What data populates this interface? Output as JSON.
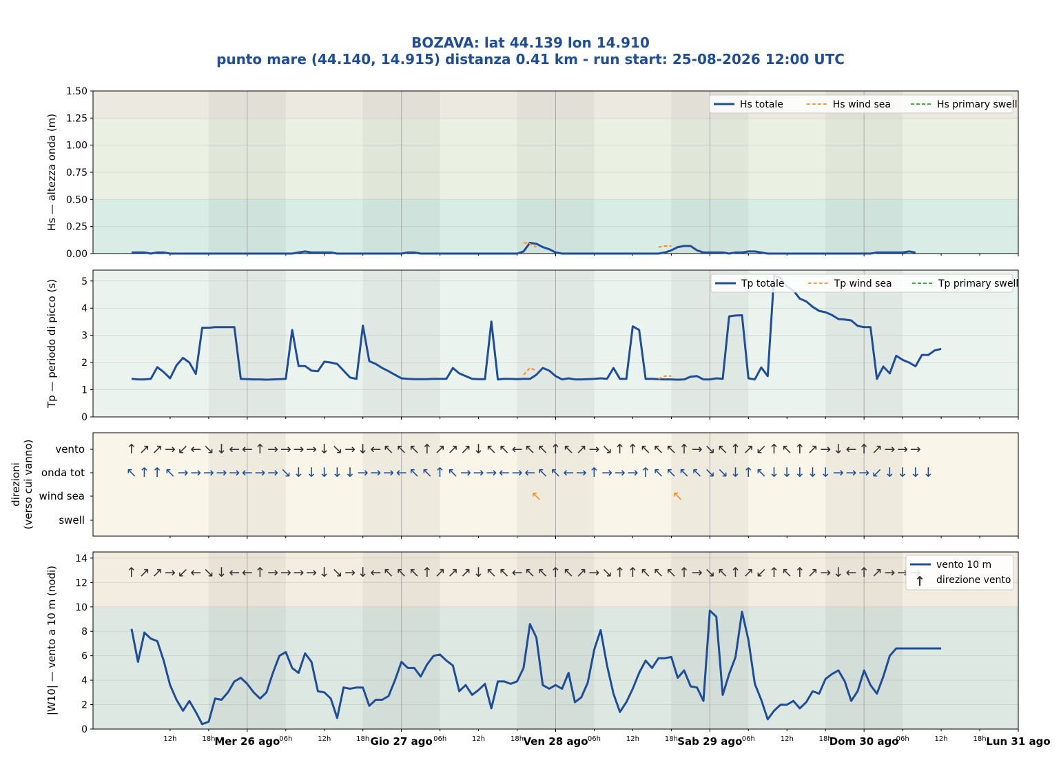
{
  "header": {
    "title_line1": "BOZAVA: lat 44.139 lon 14.910",
    "title_line2": "punto mare (44.140, 14.915)  distanza 0.41 km  -  run start: 25-08-2026 12:00 UTC"
  },
  "colors": {
    "totale": "#1f4e96",
    "wind_sea": "#ff8c1a",
    "swell": "#2ca02c",
    "arrow_vento": "#333333",
    "arrow_onda": "#1f4e96"
  },
  "x_axis": {
    "start_hour": 0,
    "end_hour": 144,
    "minor_ticks": [
      {
        "hour": 12,
        "label": "12h"
      },
      {
        "hour": 18,
        "label": "18h"
      },
      {
        "hour": 30,
        "label": "06h"
      },
      {
        "hour": 36,
        "label": "12h"
      },
      {
        "hour": 42,
        "label": "18h"
      },
      {
        "hour": 54,
        "label": "06h"
      },
      {
        "hour": 60,
        "label": "12h"
      },
      {
        "hour": 66,
        "label": "18h"
      },
      {
        "hour": 78,
        "label": "06h"
      },
      {
        "hour": 84,
        "label": "12h"
      },
      {
        "hour": 90,
        "label": "18h"
      },
      {
        "hour": 102,
        "label": "06h"
      },
      {
        "hour": 108,
        "label": "12h"
      },
      {
        "hour": 114,
        "label": "18h"
      },
      {
        "hour": 126,
        "label": "06h"
      },
      {
        "hour": 132,
        "label": "12h"
      },
      {
        "hour": 138,
        "label": "18h"
      }
    ],
    "day_labels": [
      {
        "hour": 24,
        "label": "Mer 26 ago"
      },
      {
        "hour": 48,
        "label": "Gio 27 ago"
      },
      {
        "hour": 72,
        "label": "Ven 28 ago"
      },
      {
        "hour": 96,
        "label": "Sab 29 ago"
      },
      {
        "hour": 120,
        "label": "Dom 30 ago"
      },
      {
        "hour": 144,
        "label": "Lun 31 ago"
      }
    ],
    "night_bands": [
      [
        18,
        30
      ],
      [
        42,
        54
      ],
      [
        66,
        78
      ],
      [
        90,
        102
      ],
      [
        114,
        126
      ]
    ]
  },
  "chart_data": [
    {
      "type": "line",
      "id": "hs",
      "ylabel": "Hs — altezza onda (m)",
      "ylim": [
        0,
        1.5
      ],
      "yticks": [
        0,
        0.25,
        0.5,
        0.75,
        1.0,
        1.25,
        1.5
      ],
      "ytick_labels": [
        "0.00",
        "0.25",
        "0.50",
        "0.75",
        "1.00",
        "1.25",
        "1.50"
      ],
      "legend": [
        "Hs totale",
        "Hs wind sea",
        "Hs primary swell"
      ],
      "legend_position": "top-right",
      "x_start": 6,
      "x_step": 1,
      "series": [
        {
          "name": "Hs totale",
          "style": "solid",
          "values": [
            0.01,
            0.01,
            0.01,
            0.0,
            0.01,
            0.01,
            0.0,
            0.0,
            0.0,
            0.0,
            0.0,
            0.0,
            0.0,
            0.0,
            0.0,
            0.0,
            0.0,
            0.0,
            0.0,
            0.0,
            0.0,
            0.0,
            0.0,
            0.0,
            0.0,
            0.0,
            0.01,
            0.02,
            0.01,
            0.01,
            0.01,
            0.01,
            0.0,
            0.0,
            0.0,
            0.0,
            0.0,
            0.0,
            0.0,
            0.0,
            0.0,
            0.0,
            0.0,
            0.01,
            0.01,
            0.0,
            0.0,
            0.0,
            0.0,
            0.0,
            0.0,
            0.0,
            0.0,
            0.0,
            0.0,
            0.0,
            0.0,
            0.0,
            0.0,
            0.0,
            0.0,
            0.02,
            0.1,
            0.09,
            0.06,
            0.04,
            0.01,
            0.0,
            0.0,
            0.0,
            0.0,
            0.0,
            0.0,
            0.0,
            0.0,
            0.0,
            0.0,
            0.0,
            0.0,
            0.0,
            0.0,
            0.0,
            0.0,
            0.01,
            0.03,
            0.06,
            0.07,
            0.07,
            0.03,
            0.01,
            0.01,
            0.01,
            0.01,
            0.0,
            0.01,
            0.01,
            0.02,
            0.02,
            0.01,
            0.0,
            0.0,
            0.0,
            0.0,
            0.0,
            0.0,
            0.0,
            0.0,
            0.0,
            0.0,
            0.0,
            0.0,
            0.0,
            0.0,
            0.0,
            0.0,
            0.0,
            0.01,
            0.01,
            0.01,
            0.01,
            0.01,
            0.02,
            0.01
          ]
        },
        {
          "name": "Hs wind sea",
          "style": "dashed",
          "x_start": 67,
          "values": [
            0.1,
            0.09,
            0.06
          ]
        },
        {
          "name": "Hs wind sea",
          "style": "dashed",
          "x_start": 88,
          "values": [
            0.06,
            0.07,
            0.07
          ]
        }
      ]
    },
    {
      "type": "line",
      "id": "tp",
      "ylabel": "Tp — periodo di picco (s)",
      "ylim": [
        0,
        5.4
      ],
      "yticks": [
        0,
        1,
        2,
        3,
        4,
        5
      ],
      "ytick_labels": [
        "0",
        "1",
        "2",
        "3",
        "4",
        "5"
      ],
      "legend": [
        "Tp totale",
        "Tp wind sea",
        "Tp primary swell"
      ],
      "legend_position": "top-right",
      "x_start": 6,
      "x_step": 1,
      "series": [
        {
          "name": "Tp totale",
          "style": "solid",
          "values": [
            1.4,
            1.38,
            1.38,
            1.4,
            1.83,
            1.65,
            1.42,
            1.9,
            2.17,
            2.0,
            1.58,
            3.28,
            3.28,
            3.3,
            3.3,
            3.3,
            3.3,
            1.4,
            1.39,
            1.38,
            1.38,
            1.37,
            1.38,
            1.39,
            1.4,
            3.2,
            1.87,
            1.87,
            1.7,
            1.68,
            2.03,
            2.0,
            1.95,
            1.7,
            1.45,
            1.4,
            3.36,
            2.05,
            1.95,
            1.8,
            1.68,
            1.55,
            1.42,
            1.4,
            1.39,
            1.39,
            1.39,
            1.4,
            1.4,
            1.4,
            1.8,
            1.6,
            1.5,
            1.4,
            1.39,
            1.39,
            3.51,
            1.38,
            1.4,
            1.4,
            1.39,
            1.4,
            1.4,
            1.55,
            1.8,
            1.7,
            1.5,
            1.38,
            1.42,
            1.38,
            1.38,
            1.39,
            1.4,
            1.42,
            1.4,
            1.8,
            1.4,
            1.4,
            3.33,
            3.2,
            1.4,
            1.4,
            1.39,
            1.38,
            1.38,
            1.37,
            1.38,
            1.48,
            1.5,
            1.38,
            1.38,
            1.42,
            1.4,
            3.7,
            3.73,
            3.74,
            1.42,
            1.38,
            1.82,
            1.5,
            5.2,
            5.1,
            4.8,
            4.65,
            4.35,
            4.25,
            4.05,
            3.9,
            3.85,
            3.75,
            3.6,
            3.58,
            3.55,
            3.35,
            3.3,
            3.3,
            1.4,
            1.85,
            1.6,
            2.25,
            2.1,
            2.0,
            1.86,
            2.28,
            2.28,
            2.45,
            2.5
          ]
        },
        {
          "name": "Tp wind sea",
          "style": "dashed",
          "x_start": 67,
          "values": [
            1.55,
            1.8,
            1.7
          ]
        },
        {
          "name": "Tp wind sea",
          "style": "dashed",
          "x_start": 88,
          "values": [
            1.4,
            1.5,
            1.5
          ]
        }
      ]
    },
    {
      "type": "table",
      "id": "directions",
      "ylabel_line1": "direzioni",
      "ylabel_line2": "(verso cui vanno)",
      "rows": [
        "vento",
        "onda tot",
        "wind sea",
        "swell"
      ],
      "x_start": 6,
      "x_step": 2,
      "vento_arrows": "↑↗↗→↙←↘↓←←↑→→→→↓↘→↓←↖↖↖↑↗↗↗↓↖↖←↖↖↑↖↗→↘↑↑↖↖↖↑→↘↖↑↗↙↑↖↑↗→↓←↑↗→→→",
      "onda_arrows": "↖↑↑↖→→→→→←→→↘↓↓↓↓↓→→→←↖↖↑↖→→→←→←↖↖←→↑→→→↑↖↖↖↖↘↘↓↑↖↓↓↓↓↓→→→↙↓↓↓↓",
      "wind_sea_arrows": [
        {
          "hour": 69,
          "arrow": "↖"
        },
        {
          "hour": 91,
          "arrow": "↖"
        }
      ],
      "swell_arrows": []
    },
    {
      "type": "line",
      "id": "wind",
      "ylabel": "|W10| — vento a 10 m (nodi)",
      "ylim": [
        0,
        14.5
      ],
      "yticks": [
        0,
        2,
        4,
        6,
        8,
        10,
        12,
        14
      ],
      "ytick_labels": [
        "0",
        "2",
        "4",
        "6",
        "8",
        "10",
        "12",
        "14"
      ],
      "legend": [
        "vento 10 m",
        "direzione vento"
      ],
      "legend_position": "top-right",
      "arrow_row_value": 12.8,
      "x_start": 6,
      "x_step": 1,
      "series": [
        {
          "name": "vento 10 m",
          "style": "solid",
          "values": [
            8.2,
            5.5,
            7.9,
            7.4,
            7.2,
            5.6,
            3.6,
            2.4,
            1.5,
            2.3,
            1.4,
            0.4,
            0.6,
            2.5,
            2.4,
            3.0,
            3.9,
            4.2,
            3.7,
            3.0,
            2.5,
            3.0,
            4.6,
            6.0,
            6.3,
            5.0,
            4.6,
            6.2,
            5.5,
            3.1,
            3.0,
            2.5,
            0.9,
            3.4,
            3.3,
            3.4,
            3.4,
            1.9,
            2.4,
            2.4,
            2.7,
            4.0,
            5.5,
            5.0,
            5.0,
            4.3,
            5.3,
            6.0,
            6.1,
            5.6,
            5.2,
            3.1,
            3.6,
            2.8,
            3.2,
            3.7,
            1.7,
            3.9,
            3.9,
            3.7,
            3.9,
            5.0,
            8.6,
            7.5,
            3.6,
            3.3,
            3.6,
            3.3,
            4.6,
            2.2,
            2.6,
            3.8,
            6.5,
            8.1,
            5.2,
            2.9,
            1.4,
            2.2,
            3.3,
            4.6,
            5.6,
            5.0,
            5.8,
            5.8,
            5.9,
            4.2,
            4.8,
            3.5,
            3.4,
            2.3,
            9.7,
            9.2,
            2.8,
            4.5,
            5.9,
            9.6,
            7.3,
            3.7,
            2.4,
            0.8,
            1.5,
            2.0,
            2.0,
            2.3,
            1.7,
            2.2,
            3.1,
            2.9,
            4.1,
            4.5,
            4.8,
            3.9,
            2.3,
            3.1,
            4.8,
            3.6,
            2.9,
            4.3,
            6.0,
            6.6,
            6.6,
            6.6,
            6.6,
            6.6,
            6.6,
            6.6,
            6.6
          ]
        }
      ]
    }
  ]
}
